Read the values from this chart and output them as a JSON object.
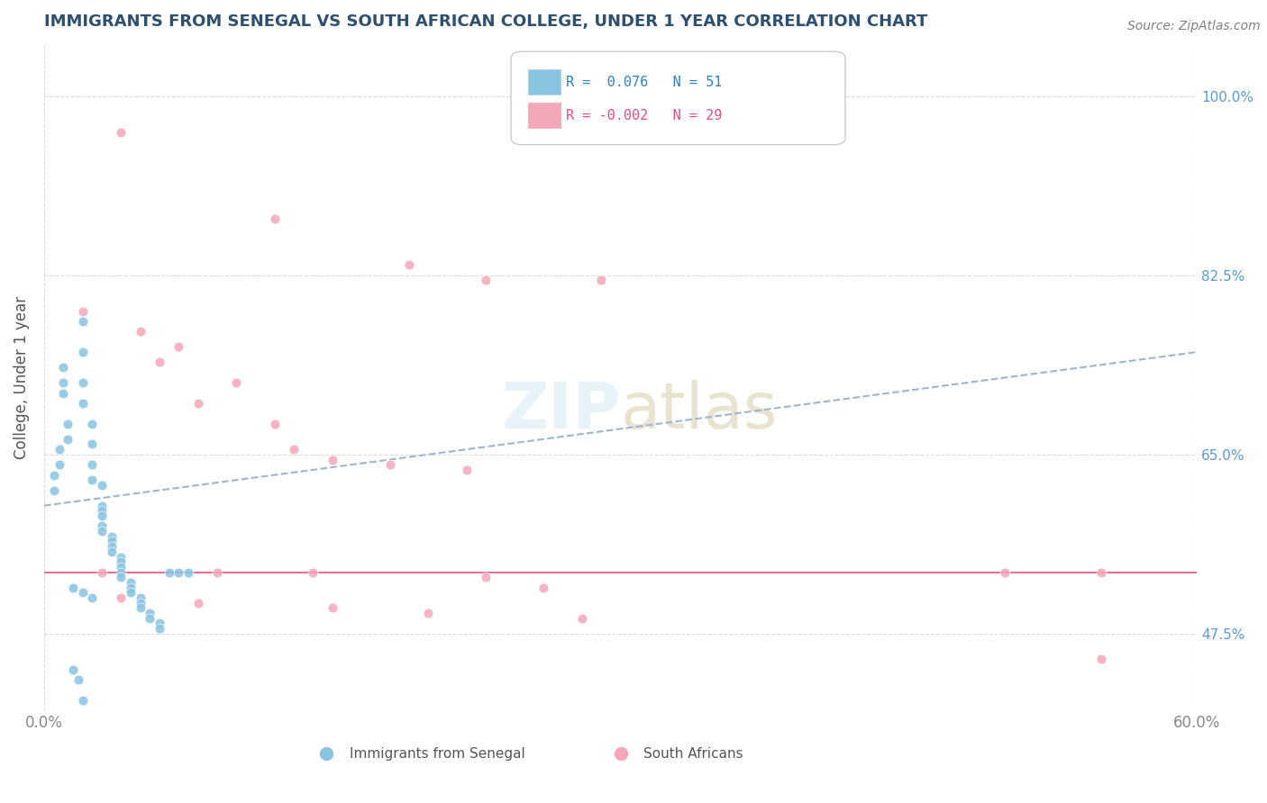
{
  "title": "IMMIGRANTS FROM SENEGAL VS SOUTH AFRICAN COLLEGE, UNDER 1 YEAR CORRELATION CHART",
  "source_text": "Source: ZipAtlas.com",
  "ylabel": "College, Under 1 year",
  "legend_label1": "Immigrants from Senegal",
  "legend_label2": "South Africans",
  "color_blue": "#89C4E1",
  "color_pink": "#F4A7B9",
  "color_trendline_blue": "#A0B4D0",
  "color_trendline_pink": "#E87090",
  "xlim": [
    0.0,
    0.6
  ],
  "ylim": [
    0.4,
    1.05
  ],
  "blue_points": [
    [
      0.02,
      0.78
    ],
    [
      0.02,
      0.75
    ],
    [
      0.02,
      0.72
    ],
    [
      0.02,
      0.7
    ],
    [
      0.025,
      0.68
    ],
    [
      0.025,
      0.66
    ],
    [
      0.025,
      0.64
    ],
    [
      0.025,
      0.625
    ],
    [
      0.03,
      0.62
    ],
    [
      0.03,
      0.6
    ],
    [
      0.03,
      0.595
    ],
    [
      0.03,
      0.59
    ],
    [
      0.03,
      0.58
    ],
    [
      0.03,
      0.575
    ],
    [
      0.035,
      0.57
    ],
    [
      0.035,
      0.565
    ],
    [
      0.035,
      0.56
    ],
    [
      0.035,
      0.555
    ],
    [
      0.04,
      0.55
    ],
    [
      0.04,
      0.545
    ],
    [
      0.04,
      0.54
    ],
    [
      0.04,
      0.535
    ],
    [
      0.04,
      0.53
    ],
    [
      0.045,
      0.525
    ],
    [
      0.045,
      0.52
    ],
    [
      0.045,
      0.515
    ],
    [
      0.05,
      0.51
    ],
    [
      0.05,
      0.505
    ],
    [
      0.05,
      0.5
    ],
    [
      0.055,
      0.495
    ],
    [
      0.055,
      0.49
    ],
    [
      0.06,
      0.485
    ],
    [
      0.06,
      0.48
    ],
    [
      0.065,
      0.535
    ],
    [
      0.07,
      0.535
    ],
    [
      0.075,
      0.535
    ],
    [
      0.015,
      0.52
    ],
    [
      0.02,
      0.515
    ],
    [
      0.025,
      0.51
    ],
    [
      0.015,
      0.44
    ],
    [
      0.018,
      0.43
    ],
    [
      0.02,
      0.41
    ],
    [
      0.01,
      0.735
    ],
    [
      0.01,
      0.72
    ],
    [
      0.01,
      0.71
    ],
    [
      0.012,
      0.68
    ],
    [
      0.012,
      0.665
    ],
    [
      0.008,
      0.655
    ],
    [
      0.008,
      0.64
    ],
    [
      0.005,
      0.63
    ],
    [
      0.005,
      0.615
    ]
  ],
  "pink_points": [
    [
      0.04,
      0.965
    ],
    [
      0.12,
      0.88
    ],
    [
      0.19,
      0.835
    ],
    [
      0.23,
      0.82
    ],
    [
      0.29,
      0.82
    ],
    [
      0.02,
      0.79
    ],
    [
      0.05,
      0.77
    ],
    [
      0.07,
      0.755
    ],
    [
      0.06,
      0.74
    ],
    [
      0.1,
      0.72
    ],
    [
      0.08,
      0.7
    ],
    [
      0.12,
      0.68
    ],
    [
      0.13,
      0.655
    ],
    [
      0.15,
      0.645
    ],
    [
      0.18,
      0.64
    ],
    [
      0.22,
      0.635
    ],
    [
      0.03,
      0.535
    ],
    [
      0.09,
      0.535
    ],
    [
      0.14,
      0.535
    ],
    [
      0.5,
      0.535
    ],
    [
      0.55,
      0.535
    ],
    [
      0.23,
      0.53
    ],
    [
      0.26,
      0.52
    ],
    [
      0.04,
      0.51
    ],
    [
      0.08,
      0.505
    ],
    [
      0.15,
      0.5
    ],
    [
      0.2,
      0.495
    ],
    [
      0.28,
      0.49
    ],
    [
      0.55,
      0.45
    ]
  ],
  "blue_trend_x": [
    0.0,
    0.6
  ],
  "blue_trend_y": [
    0.6,
    0.75
  ],
  "pink_trend_y": [
    0.535,
    0.535
  ],
  "title_color": "#2F4F6F",
  "source_color": "#808080",
  "right_tick_color": "#5B9BD5",
  "y_ticks": [
    0.475,
    0.65,
    0.825,
    1.0
  ],
  "y_tick_labels": [
    "47.5%",
    "65.0%",
    "82.5%",
    "100.0%"
  ],
  "legend_r1_label": "R =  0.076",
  "legend_n1_label": "N = 51",
  "legend_r2_label": "R = -0.002",
  "legend_n2_label": "N = 29",
  "legend_r1_color": "#2F80C0",
  "legend_r2_color": "#E05080"
}
